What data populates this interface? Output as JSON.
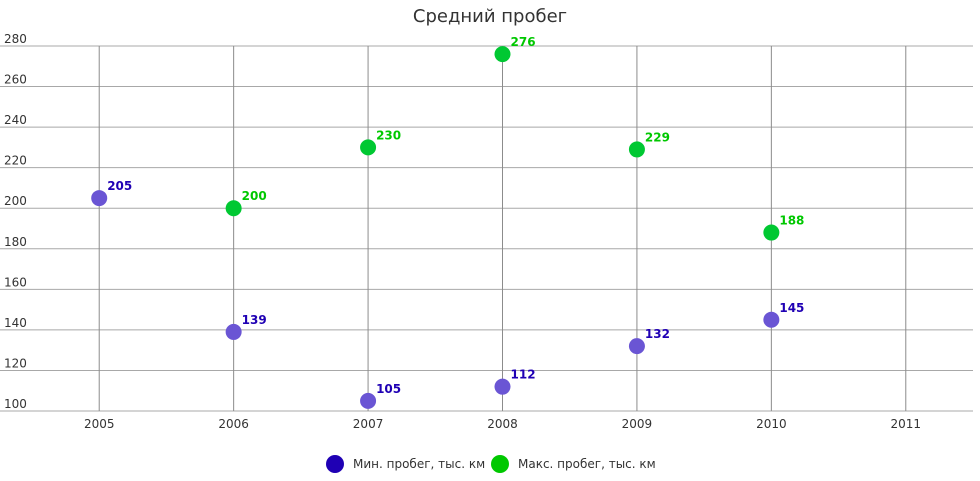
{
  "chart_data": {
    "type": "scatter",
    "title": "Средний пробег",
    "xlabel": "",
    "ylabel": "",
    "x": [
      2005,
      2006,
      2007,
      2008,
      2009,
      2010,
      2011
    ],
    "xlim": [
      2004.5,
      2011.5
    ],
    "ylim": [
      100,
      280
    ],
    "yticks": [
      100,
      120,
      140,
      160,
      180,
      200,
      220,
      240,
      260,
      280
    ],
    "grid": true,
    "legend_position": "bottom",
    "series": [
      {
        "name": "Мин. пробег, тыс. км",
        "color": "#1f00b4",
        "marker_color": "#6a55d4",
        "points": [
          {
            "x": 2005,
            "y": 205
          },
          {
            "x": 2006,
            "y": 139
          },
          {
            "x": 2007,
            "y": 105
          },
          {
            "x": 2008,
            "y": 112
          },
          {
            "x": 2009,
            "y": 132
          },
          {
            "x": 2010,
            "y": 145
          }
        ]
      },
      {
        "name": "Макс. пробег, тыс. км",
        "color": "#00c800",
        "marker_color": "#00c832",
        "points": [
          {
            "x": 2006,
            "y": 200
          },
          {
            "x": 2007,
            "y": 230
          },
          {
            "x": 2008,
            "y": 276
          },
          {
            "x": 2009,
            "y": 229
          },
          {
            "x": 2010,
            "y": 188
          }
        ]
      }
    ]
  }
}
